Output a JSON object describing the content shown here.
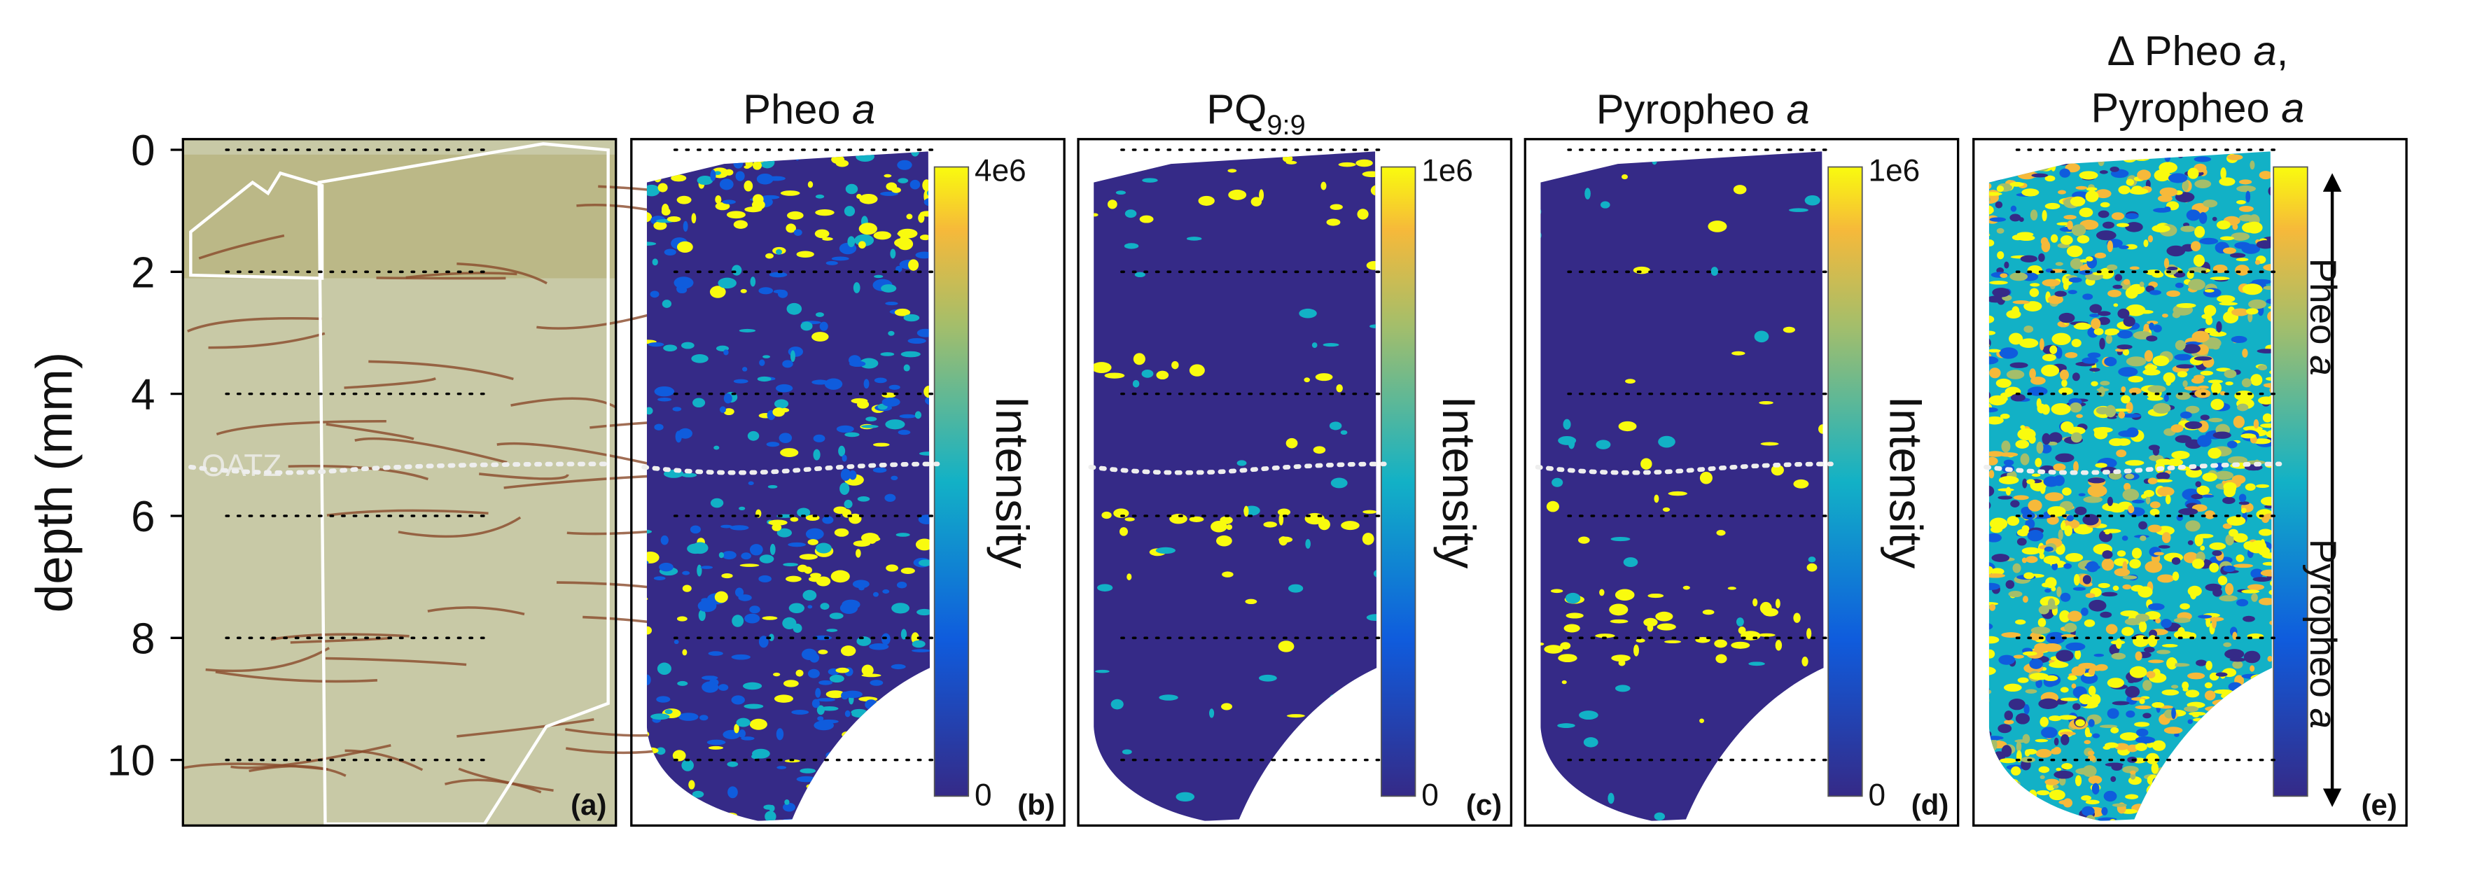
{
  "figure": {
    "axis": {
      "label": "depth (mm)",
      "ylim": [
        -0.2,
        11.1
      ],
      "yticks": [
        0,
        2,
        4,
        6,
        8,
        10
      ]
    },
    "oatz_label": "OATZ",
    "panels": [
      {
        "tag": "(a)"
      },
      {
        "title": [
          "Pheo ",
          "a"
        ],
        "colorbar_max": "4e6",
        "colorbar_min": "0",
        "colorbar_label": "Intensity",
        "tag": "(b)"
      },
      {
        "title": [
          "PQ",
          "9:9"
        ],
        "colorbar_max": "1e6",
        "colorbar_min": "0",
        "colorbar_label": "Intensity",
        "tag": "(c)"
      },
      {
        "title": [
          "Pyropheo ",
          "a"
        ],
        "colorbar_max": "1e6",
        "colorbar_min": "0",
        "colorbar_label": "Intensity",
        "tag": "(d)"
      },
      {
        "title_lines": [
          [
            "Δ Pheo ",
            "a",
            ","
          ],
          [
            "Pyropheo ",
            "a"
          ]
        ],
        "arrow_top": [
          "Pheo ",
          "a"
        ],
        "arrow_bottom": [
          "Pyropheo ",
          "a"
        ],
        "tag": "(e)"
      }
    ]
  }
}
